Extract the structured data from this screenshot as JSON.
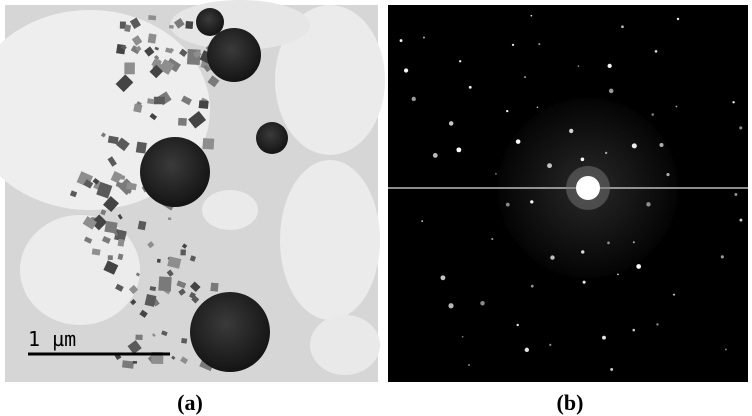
{
  "panels": [
    {
      "label": "(a)",
      "scale_bar": "1 µm"
    },
    {
      "label": "(b)"
    }
  ]
}
